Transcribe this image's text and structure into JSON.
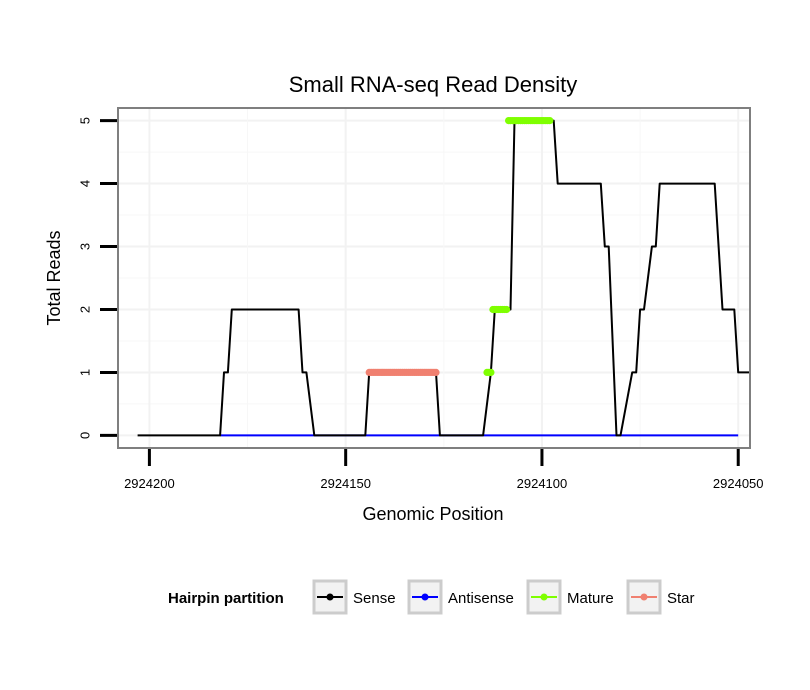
{
  "chart_data": {
    "type": "line",
    "title": "Small RNA-seq Read Density",
    "xlabel": "Genomic Position",
    "ylabel": "Total Reads",
    "xlim": [
      2924208,
      2924047
    ],
    "ylim": [
      -0.2,
      5.2
    ],
    "x_reversed": true,
    "x_ticks": [
      2924200,
      2924150,
      2924100,
      2924050
    ],
    "x_tick_labels": [
      "2924200",
      "2924150",
      "2924100",
      "2924050"
    ],
    "y_ticks": [
      0,
      1,
      2,
      3,
      4,
      5
    ],
    "y_tick_labels": [
      "0",
      "1",
      "2",
      "3",
      "4",
      "5"
    ],
    "grid": true,
    "legend": {
      "title": "Hairpin partition",
      "position": "bottom",
      "entries": [
        "Sense",
        "Antisense",
        "Mature",
        "Star"
      ]
    },
    "series": [
      {
        "name": "Sense",
        "color": "#000000",
        "style": "line",
        "x": [
          2924203,
          2924182,
          2924181,
          2924180,
          2924179,
          2924162,
          2924161,
          2924160,
          2924158,
          2924145,
          2924144,
          2924127,
          2924126,
          2924115,
          2924113,
          2924112,
          2924108,
          2924107,
          2924097,
          2924096,
          2924085,
          2924084,
          2924083,
          2924081,
          2924080,
          2924077,
          2924076,
          2924075,
          2924074,
          2924072,
          2924071,
          2924070,
          2924056,
          2924054,
          2924051,
          2924050,
          2924047
        ],
        "y": [
          0,
          0,
          1,
          1,
          2,
          2,
          1,
          1,
          0,
          0,
          1,
          1,
          0,
          0,
          1,
          2,
          2,
          5,
          5,
          4,
          4,
          3,
          3,
          0,
          0,
          1,
          1,
          2,
          2,
          3,
          3,
          4,
          4,
          2,
          2,
          1,
          1
        ]
      },
      {
        "name": "Antisense",
        "color": "#0000ff",
        "style": "line",
        "x": [
          2924182,
          2924050
        ],
        "y": [
          0,
          0
        ]
      },
      {
        "name": "Mature",
        "color": "#7fff00",
        "style": "points",
        "x": [
          2924114,
          2924113.5,
          2924113,
          2924112.5,
          2924112,
          2924111.5,
          2924111,
          2924110.5,
          2924110,
          2924109.5,
          2924109,
          2924108.5,
          2924108,
          2924107.5,
          2924107,
          2924106.5,
          2924106,
          2924105.5,
          2924105,
          2924104.5,
          2924104,
          2924103.5,
          2924103,
          2924102.5,
          2924102,
          2924101.5,
          2924101,
          2924100.5,
          2924100,
          2924099.5,
          2924099,
          2924098.5,
          2924098
        ],
        "y": [
          1,
          1,
          1,
          2,
          2,
          2,
          2,
          2,
          2,
          2,
          2,
          5,
          5,
          5,
          5,
          5,
          5,
          5,
          5,
          5,
          5,
          5,
          5,
          5,
          5,
          5,
          5,
          5,
          5,
          5,
          5,
          5,
          5
        ]
      },
      {
        "name": "Star",
        "color": "#f08070",
        "style": "points",
        "x": [
          2924144,
          2924143.5,
          2924143,
          2924142.5,
          2924142,
          2924141.5,
          2924141,
          2924140.5,
          2924140,
          2924139.5,
          2924139,
          2924138.5,
          2924138,
          2924137.5,
          2924137,
          2924136.5,
          2924136,
          2924135.5,
          2924135,
          2924134.5,
          2924134,
          2924133.5,
          2924133,
          2924132.5,
          2924132,
          2924131.5,
          2924131,
          2924130.5,
          2924130,
          2924129.5,
          2924129,
          2924128.5,
          2924128,
          2924127.5,
          2924127
        ],
        "y": [
          1,
          1,
          1,
          1,
          1,
          1,
          1,
          1,
          1,
          1,
          1,
          1,
          1,
          1,
          1,
          1,
          1,
          1,
          1,
          1,
          1,
          1,
          1,
          1,
          1,
          1,
          1,
          1,
          1,
          1,
          1,
          1,
          1,
          1,
          1
        ]
      }
    ]
  }
}
